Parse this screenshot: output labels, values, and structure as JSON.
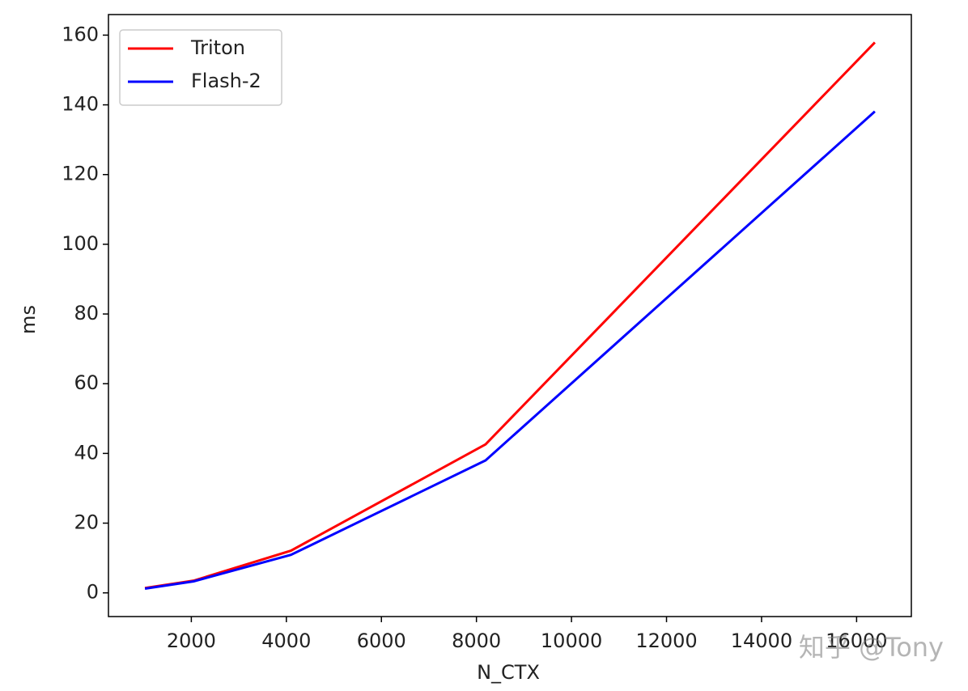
{
  "chart_data": {
    "type": "line",
    "x_label": "N_CTX",
    "y_label": "ms",
    "x": [
      1024,
      2048,
      4096,
      8192,
      16384
    ],
    "series": [
      {
        "name": "Triton",
        "color": "#ff0000",
        "values": [
          1.4,
          3.5,
          12.1,
          42.6,
          157.9
        ]
      },
      {
        "name": "Flash-2",
        "color": "#0000ff",
        "values": [
          1.2,
          3.3,
          10.9,
          38,
          138.1
        ]
      }
    ],
    "xlim": [
      256,
      17152
    ],
    "xticks": [
      2000,
      4000,
      6000,
      8000,
      10000,
      12000,
      14000,
      16000
    ],
    "ylim": [
      -6.8,
      165.9
    ],
    "yticks": [
      0,
      20,
      40,
      60,
      80,
      100,
      120,
      140,
      160
    ],
    "legend": "upper left",
    "watermark": "知乎 @Tony"
  }
}
